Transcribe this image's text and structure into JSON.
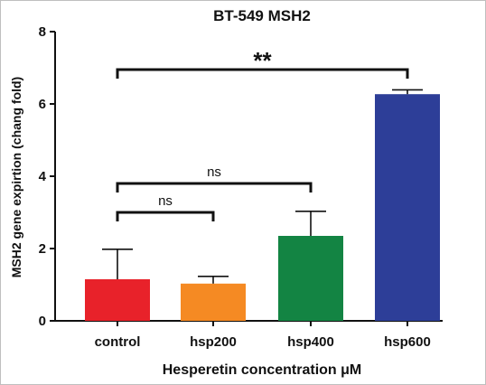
{
  "chart_data": {
    "type": "bar",
    "title": "BT-549 MSH2",
    "xlabel": "Hesperetin concentration μM",
    "ylabel": "MSH2 gene expirtion (chang fold)",
    "ylim": [
      0,
      8
    ],
    "yticks": [
      0,
      2,
      4,
      6,
      8
    ],
    "categories": [
      "control",
      "hsp200",
      "hsp400",
      "hsp600"
    ],
    "values": [
      1.15,
      1.03,
      2.35,
      6.27
    ],
    "errors": [
      0.83,
      0.2,
      0.68,
      0.12
    ],
    "colors": [
      "#e8222a",
      "#f58a23",
      "#138443",
      "#2d3e98"
    ],
    "grid": false,
    "annotations": [
      {
        "from": "control",
        "to": "hsp200",
        "label": "ns",
        "y": 3.0
      },
      {
        "from": "control",
        "to": "hsp400",
        "label": "ns",
        "y": 3.8
      },
      {
        "from": "control",
        "to": "hsp600",
        "label": "**",
        "y": 6.95
      }
    ]
  }
}
